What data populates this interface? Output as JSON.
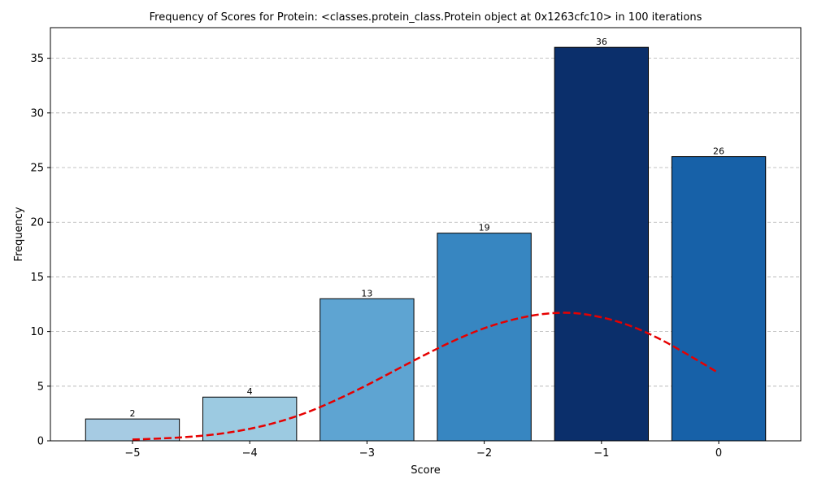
{
  "chart_data": {
    "type": "bar",
    "title": "Frequency of Scores for Protein: <classes.protein_class.Protein object at 0x1263cfc10> in 100 iterations",
    "xlabel": "Score",
    "ylabel": "Frequency",
    "x_ticks": [
      "−5",
      "−4",
      "−3",
      "−2",
      "−1",
      "0"
    ],
    "y_ticks": [
      "0",
      "5",
      "10",
      "15",
      "20",
      "25",
      "30",
      "35"
    ],
    "xlim": [
      -5.7,
      0.7
    ],
    "ylim": [
      0,
      37.8
    ],
    "grid": "y-dashed",
    "categories": [
      -5,
      -4,
      -3,
      -2,
      -1,
      0
    ],
    "values": [
      2,
      4,
      13,
      19,
      36,
      26
    ],
    "bar_colors": [
      "#a6cbe3",
      "#9ccae1",
      "#5ea4d2",
      "#3786c1",
      "#0b2f6b",
      "#1761a8"
    ],
    "bar_edge_color": "#000000",
    "fit_curve": {
      "style": "dashed",
      "color": "#e60000",
      "x": [
        -5,
        -4.75,
        -4.5,
        -4.25,
        -4,
        -3.75,
        -3.5,
        -3.25,
        -3,
        -2.75,
        -2.5,
        -2.25,
        -2,
        -1.75,
        -1.5,
        -1.25,
        -1,
        -0.75,
        -0.5,
        -0.25,
        0
      ],
      "y": [
        0.12,
        0.22,
        0.38,
        0.65,
        1.1,
        1.75,
        2.65,
        3.8,
        5.1,
        6.5,
        7.9,
        9.2,
        10.3,
        11.1,
        11.6,
        11.7,
        11.3,
        10.5,
        9.3,
        7.8,
        6.2
      ]
    }
  }
}
